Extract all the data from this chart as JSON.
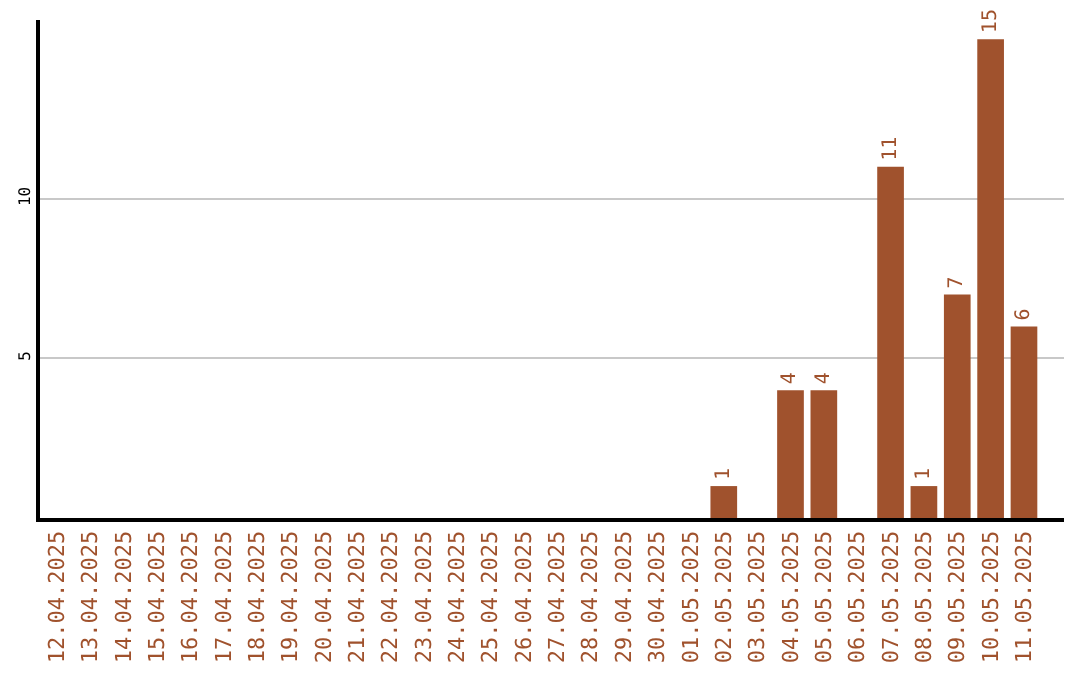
{
  "chart_data": {
    "type": "bar",
    "categories": [
      "12.04.2025",
      "13.04.2025",
      "14.04.2025",
      "15.04.2025",
      "16.04.2025",
      "17.04.2025",
      "18.04.2025",
      "19.04.2025",
      "20.04.2025",
      "21.04.2025",
      "22.04.2025",
      "23.04.2025",
      "24.04.2025",
      "25.04.2025",
      "26.04.2025",
      "27.04.2025",
      "28.04.2025",
      "29.04.2025",
      "30.04.2025",
      "01.05.2025",
      "02.05.2025",
      "03.05.2025",
      "04.05.2025",
      "05.05.2025",
      "06.05.2025",
      "07.05.2025",
      "08.05.2025",
      "09.05.2025",
      "10.05.2025",
      "11.05.2025"
    ],
    "values": [
      0,
      0,
      0,
      0,
      0,
      0,
      0,
      0,
      0,
      0,
      0,
      0,
      0,
      0,
      0,
      0,
      0,
      0,
      0,
      0,
      1,
      0,
      4,
      4,
      0,
      11,
      1,
      7,
      15,
      6
    ],
    "value_labels": [
      null,
      null,
      null,
      null,
      null,
      null,
      null,
      null,
      null,
      null,
      null,
      null,
      null,
      null,
      null,
      null,
      null,
      null,
      null,
      null,
      "1",
      null,
      "4",
      "4",
      null,
      "11",
      "1",
      "7",
      "15",
      "6"
    ],
    "color": "#a0522d",
    "ylim": [
      0,
      15.6
    ],
    "yticks": [
      5,
      10
    ],
    "grid": "y",
    "legend": false
  }
}
